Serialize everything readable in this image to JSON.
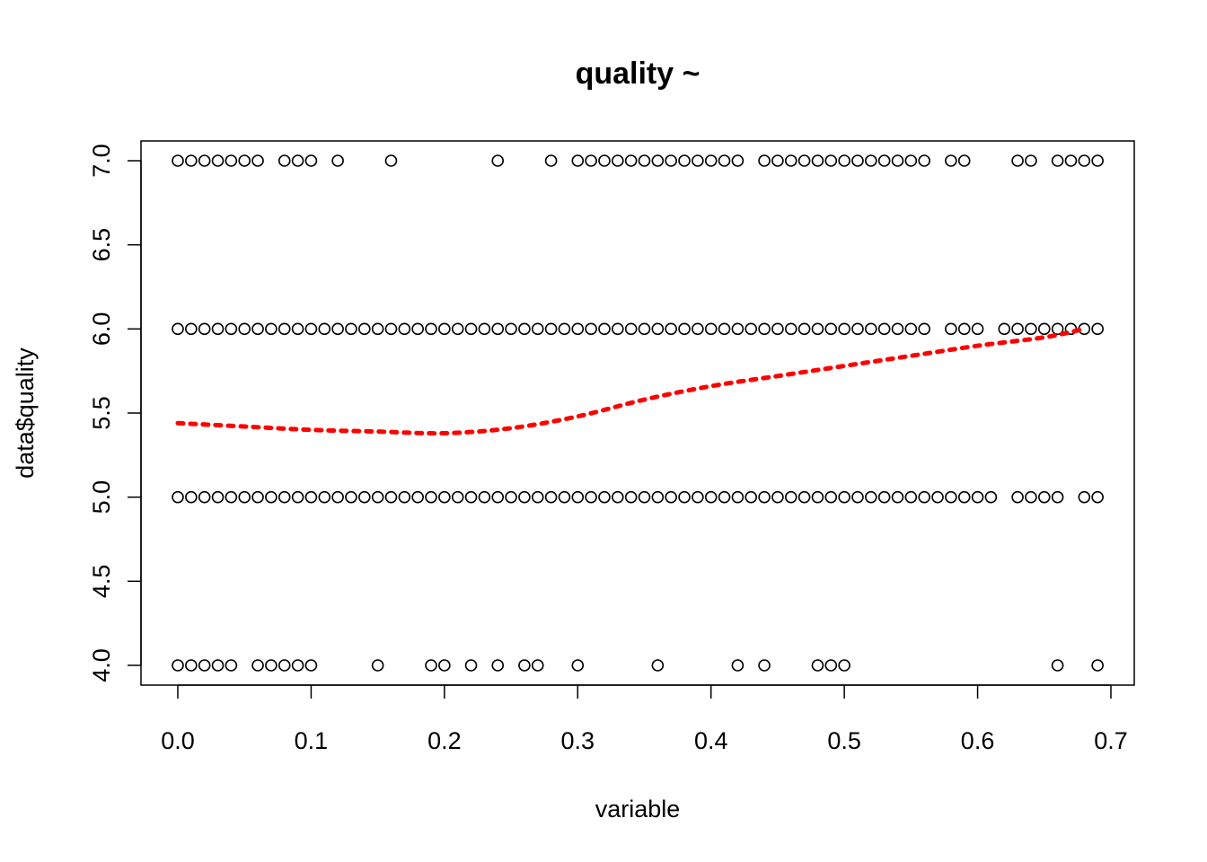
{
  "chart_data": {
    "type": "scatter",
    "title": "quality ~",
    "xlabel": "variable",
    "ylabel": "data$quality",
    "xlim": [
      0.0,
      0.7
    ],
    "ylim": [
      4.0,
      7.0
    ],
    "x_ticks": [
      "0.0",
      "0.1",
      "0.2",
      "0.3",
      "0.4",
      "0.5",
      "0.6",
      "0.7"
    ],
    "y_ticks": [
      "4.0",
      "4.5",
      "5.0",
      "5.5",
      "6.0",
      "6.5",
      "7.0"
    ],
    "grid": false,
    "colors": {
      "points": "#000000",
      "smooth": "#ff0000"
    },
    "series": [
      {
        "values_by_level": [
          {
            "y": 7,
            "x": [
              0.0,
              0.01,
              0.02,
              0.03,
              0.04,
              0.05,
              0.06,
              0.08,
              0.09,
              0.1,
              0.12,
              0.16,
              0.24,
              0.28,
              0.3,
              0.31,
              0.32,
              0.33,
              0.34,
              0.35,
              0.36,
              0.37,
              0.38,
              0.39,
              0.4,
              0.41,
              0.42,
              0.44,
              0.45,
              0.46,
              0.47,
              0.48,
              0.49,
              0.5,
              0.51,
              0.52,
              0.53,
              0.54,
              0.55,
              0.56,
              0.58,
              0.59,
              0.63,
              0.64,
              0.66,
              0.67,
              0.68,
              0.69
            ]
          },
          {
            "y": 6,
            "x": [
              0.0,
              0.01,
              0.02,
              0.03,
              0.04,
              0.05,
              0.06,
              0.07,
              0.08,
              0.09,
              0.1,
              0.11,
              0.12,
              0.13,
              0.14,
              0.15,
              0.16,
              0.17,
              0.18,
              0.19,
              0.2,
              0.21,
              0.22,
              0.23,
              0.24,
              0.25,
              0.26,
              0.27,
              0.28,
              0.29,
              0.3,
              0.31,
              0.32,
              0.33,
              0.34,
              0.35,
              0.36,
              0.37,
              0.38,
              0.39,
              0.4,
              0.41,
              0.42,
              0.43,
              0.44,
              0.45,
              0.46,
              0.47,
              0.48,
              0.49,
              0.5,
              0.51,
              0.52,
              0.53,
              0.54,
              0.55,
              0.56,
              0.58,
              0.59,
              0.6,
              0.62,
              0.63,
              0.64,
              0.65,
              0.66,
              0.67,
              0.68,
              0.69
            ]
          },
          {
            "y": 5,
            "x": [
              0.0,
              0.01,
              0.02,
              0.03,
              0.04,
              0.05,
              0.06,
              0.07,
              0.08,
              0.09,
              0.1,
              0.11,
              0.12,
              0.13,
              0.14,
              0.15,
              0.16,
              0.17,
              0.18,
              0.19,
              0.2,
              0.21,
              0.22,
              0.23,
              0.24,
              0.25,
              0.26,
              0.27,
              0.28,
              0.29,
              0.3,
              0.31,
              0.32,
              0.33,
              0.34,
              0.35,
              0.36,
              0.37,
              0.38,
              0.39,
              0.4,
              0.41,
              0.42,
              0.43,
              0.44,
              0.45,
              0.46,
              0.47,
              0.48,
              0.49,
              0.5,
              0.51,
              0.52,
              0.53,
              0.54,
              0.55,
              0.56,
              0.57,
              0.58,
              0.59,
              0.6,
              0.61,
              0.63,
              0.64,
              0.65,
              0.66,
              0.68,
              0.69
            ]
          },
          {
            "y": 4,
            "x": [
              0.0,
              0.01,
              0.02,
              0.03,
              0.04,
              0.06,
              0.07,
              0.08,
              0.09,
              0.1,
              0.15,
              0.19,
              0.2,
              0.22,
              0.24,
              0.26,
              0.27,
              0.3,
              0.36,
              0.42,
              0.44,
              0.48,
              0.49,
              0.5,
              0.66,
              0.69
            ]
          }
        ]
      },
      {
        "line_style": "dotted",
        "points": [
          [
            0.0,
            5.44
          ],
          [
            0.05,
            5.42
          ],
          [
            0.1,
            5.4
          ],
          [
            0.15,
            5.39
          ],
          [
            0.2,
            5.38
          ],
          [
            0.25,
            5.41
          ],
          [
            0.3,
            5.48
          ],
          [
            0.35,
            5.58
          ],
          [
            0.4,
            5.66
          ],
          [
            0.45,
            5.72
          ],
          [
            0.5,
            5.78
          ],
          [
            0.55,
            5.84
          ],
          [
            0.6,
            5.9
          ],
          [
            0.65,
            5.95
          ],
          [
            0.68,
            6.0
          ]
        ]
      }
    ]
  }
}
